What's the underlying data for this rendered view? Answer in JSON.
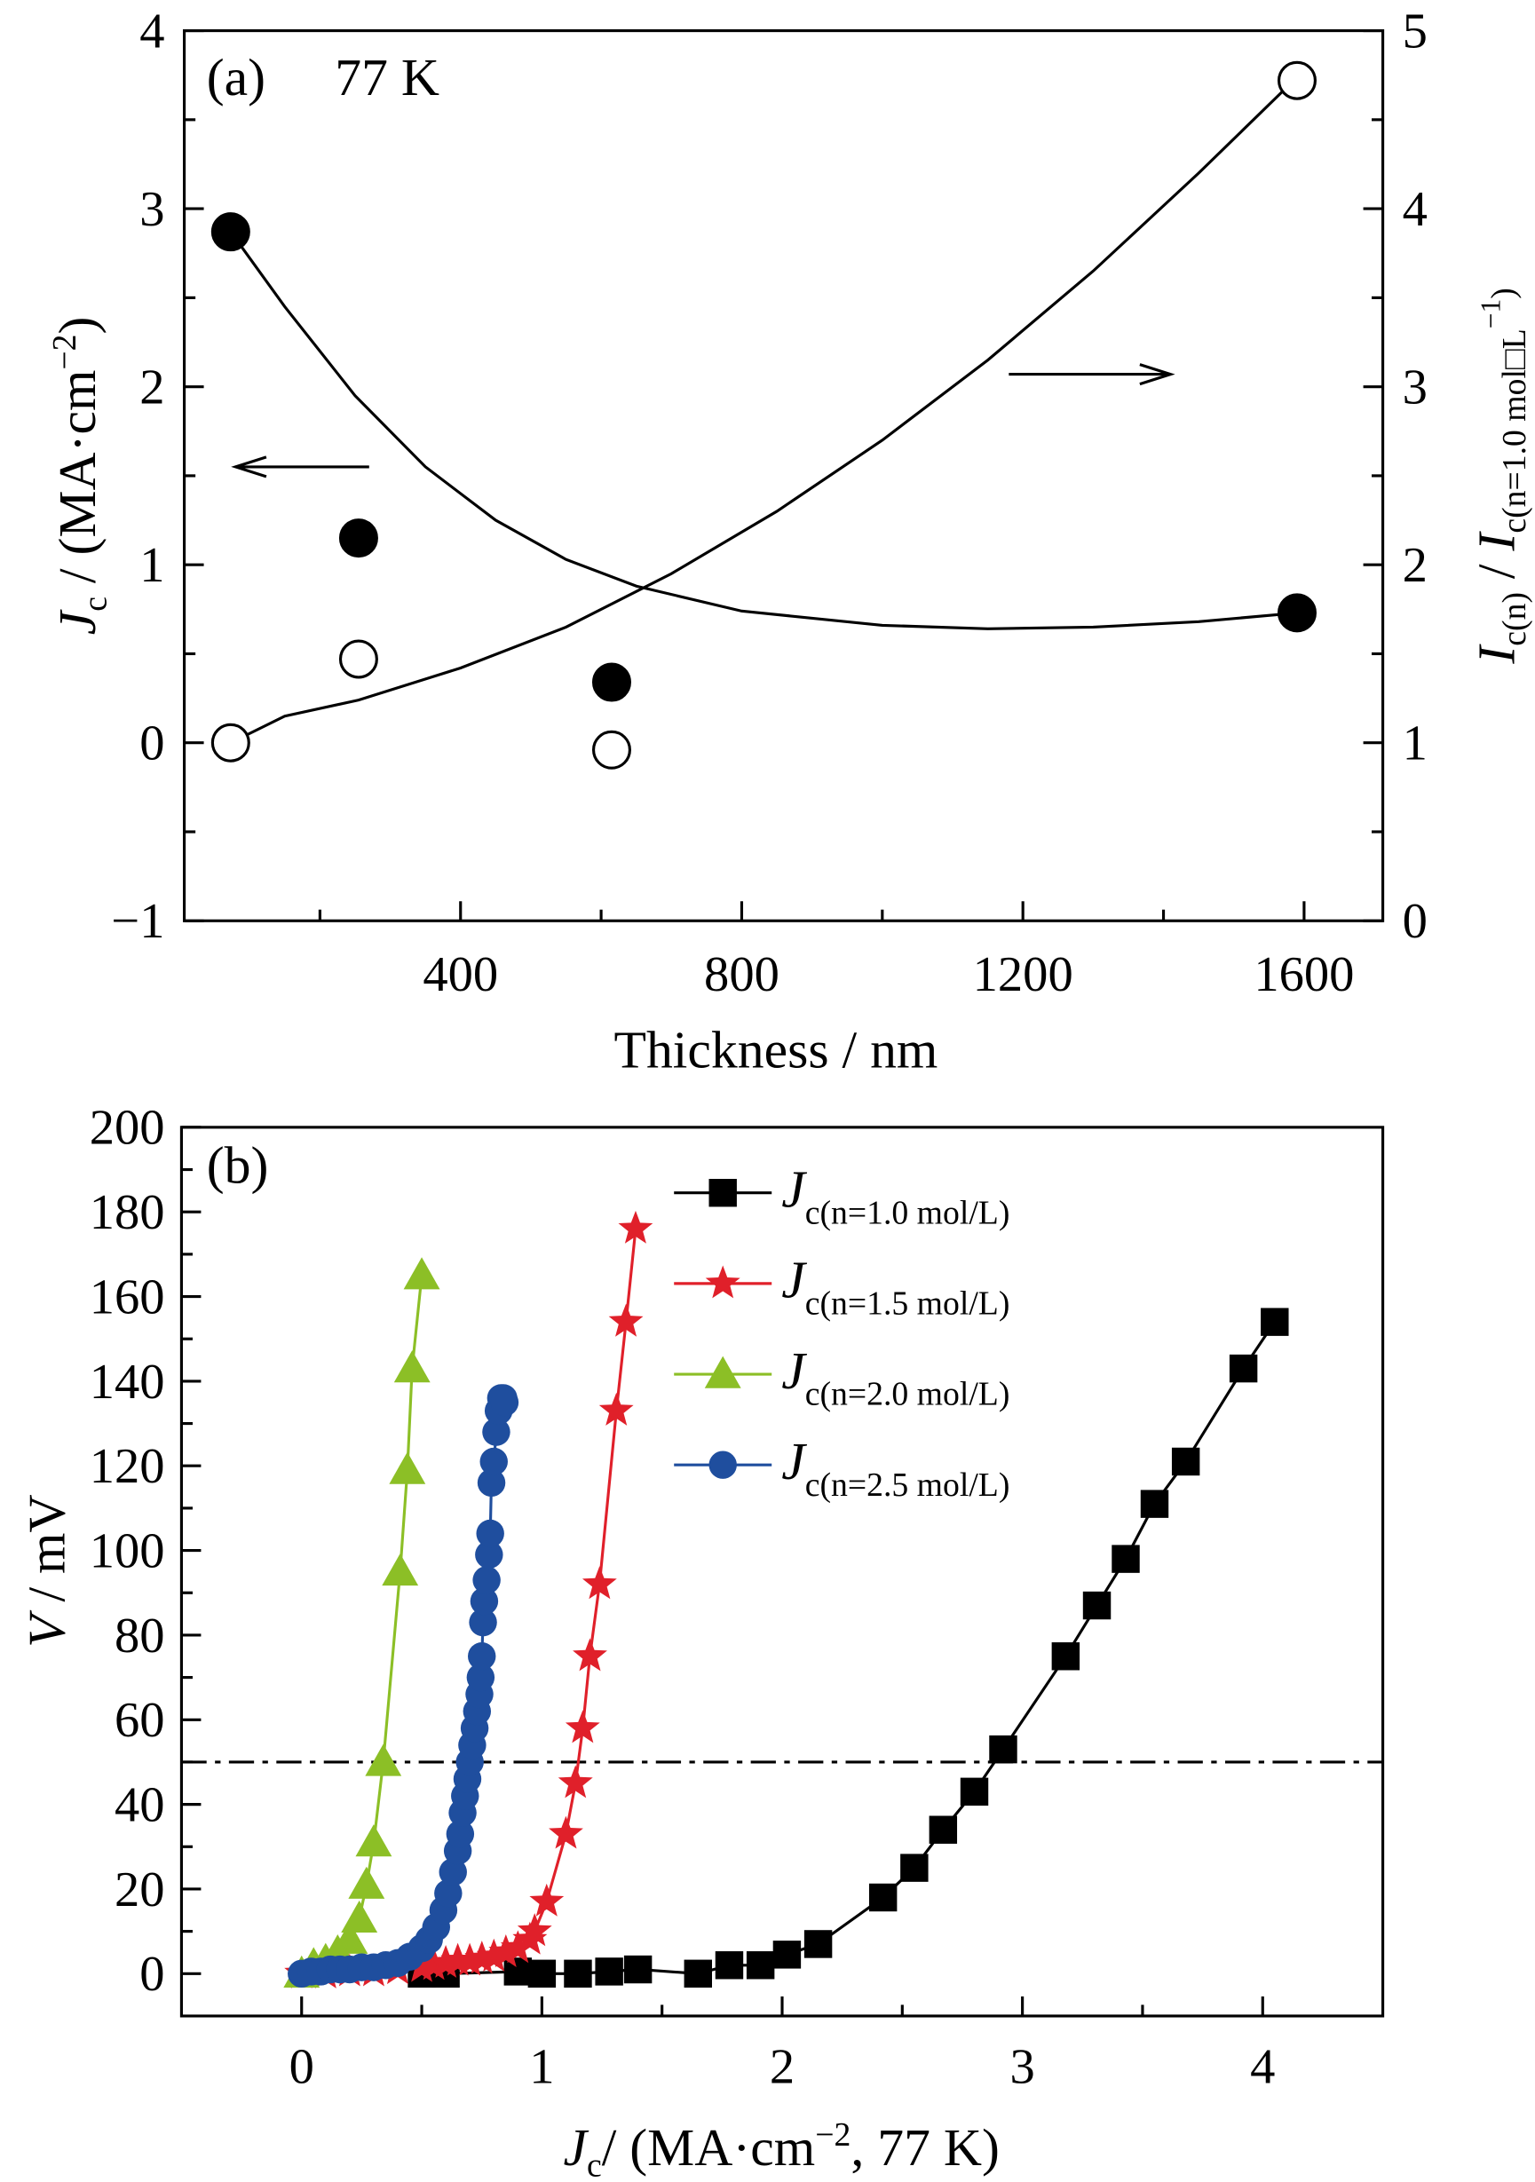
{
  "chart_data": [
    {
      "type": "scatter",
      "panel": "(a)",
      "annotation": "77 K",
      "xlabel": "Thickness / nm",
      "ylabel": {
        "main": "J",
        "sub": "c",
        "rest": " / (MA·cm",
        "sup": "−2",
        "close": ")"
      },
      "y2label": {
        "a": "I",
        "asub": "c(n)",
        "mid": " / ",
        "b": "I",
        "bsub": "c(n=1.0 mol□L",
        "bsup": "−1",
        "bclose": ")"
      },
      "xlim": [
        7,
        1712
      ],
      "ylim": [
        -1,
        4
      ],
      "y2lim": [
        0,
        5
      ],
      "xticks": [
        "400",
        "800",
        "1200",
        "1600"
      ],
      "yticks": [
        "−1",
        "0",
        "1",
        "2",
        "3",
        "4"
      ],
      "y2ticks": [
        "0",
        "1",
        "2",
        "3",
        "4",
        "5"
      ],
      "series": [
        {
          "name": "Jc",
          "axis": "left",
          "marker": "filled-circle",
          "x": [
            73,
            255,
            615,
            1590
          ],
          "y": [
            2.87,
            1.15,
            0.34,
            0.73
          ],
          "fit": {
            "x": [
              73,
              150,
              250,
              350,
              450,
              550,
              650,
              800,
              1000,
              1150,
              1300,
              1450,
              1590
            ],
            "y": [
              2.87,
              2.45,
              1.95,
              1.55,
              1.25,
              1.03,
              0.88,
              0.74,
              0.66,
              0.64,
              0.65,
              0.68,
              0.73
            ]
          }
        },
        {
          "name": "Ic ratio",
          "axis": "right",
          "marker": "open-circle",
          "x": [
            73,
            255,
            615,
            1590
          ],
          "y": [
            1.0,
            1.47,
            0.96,
            4.72
          ],
          "fit": {
            "x": [
              73,
              150,
              255,
              400,
              550,
              700,
              850,
              1000,
              1150,
              1300,
              1450,
              1580
            ],
            "y": [
              1.0,
              1.15,
              1.24,
              1.42,
              1.65,
              1.95,
              2.3,
              2.7,
              3.15,
              3.65,
              4.2,
              4.7
            ]
          }
        }
      ],
      "arrows": [
        {
          "direction": "left",
          "from": [
            270,
            1.55
          ],
          "to": [
            80,
            1.55
          ],
          "axis": "left"
        },
        {
          "direction": "right",
          "from": [
            1180,
            3.07
          ],
          "to": [
            1410,
            3.07
          ],
          "axis": "right"
        }
      ]
    },
    {
      "type": "line",
      "panel": "(b)",
      "xlabel": {
        "main": "J",
        "sub": "c",
        "rest": "/ (MA·cm",
        "sup": "−2",
        "close": ", 77 K)"
      },
      "ylabel": {
        "main": "V",
        "rest": " / mV"
      },
      "xlim": [
        -0.5,
        4.5
      ],
      "ylim": [
        -10,
        200
      ],
      "xticks": [
        "0",
        "1",
        "2",
        "3",
        "4"
      ],
      "yticks": [
        "0",
        "20",
        "40",
        "60",
        "80",
        "100",
        "120",
        "140",
        "160",
        "180",
        "200"
      ],
      "reference_line": {
        "y": 50,
        "style": "dash-dot"
      },
      "legend_position": "top-center",
      "series": [
        {
          "name": "J",
          "sub": "c(n=1.0 mol/L)",
          "color": "#000000",
          "marker": "square",
          "x": [
            0.5,
            0.6,
            0.9,
            1.0,
            1.15,
            1.28,
            1.4,
            1.65,
            1.78,
            1.91,
            2.02,
            2.15,
            2.42,
            2.55,
            2.67,
            2.8,
            2.92,
            3.18,
            3.31,
            3.43,
            3.55,
            3.68,
            3.92,
            4.05
          ],
          "y": [
            0,
            0,
            0.5,
            0,
            0,
            0.5,
            1,
            0,
            2,
            2,
            4.5,
            7,
            18,
            25,
            34,
            43,
            53,
            75,
            87,
            98,
            111,
            121,
            143,
            154
          ]
        },
        {
          "name": "J",
          "sub": "c(n=1.5 mol/L)",
          "color": "#e0202a",
          "marker": "star",
          "x": [
            0,
            0.1,
            0.2,
            0.3,
            0.4,
            0.5,
            0.55,
            0.6,
            0.65,
            0.7,
            0.75,
            0.8,
            0.85,
            0.9,
            0.95,
            0.97,
            1.02,
            1.1,
            1.14,
            1.17,
            1.2,
            1.24,
            1.31,
            1.35,
            1.39
          ],
          "y": [
            0,
            0,
            0.5,
            0.5,
            1,
            1.5,
            2,
            2.5,
            3,
            3,
            3.5,
            4,
            5,
            6,
            8,
            10,
            17,
            33,
            45,
            58,
            75,
            92,
            133,
            154,
            176
          ]
        },
        {
          "name": "J",
          "sub": "c(n=2.0 mol/L)",
          "color": "#8cbf26",
          "marker": "triangle",
          "x": [
            0,
            0.05,
            0.1,
            0.15,
            0.2,
            0.24,
            0.27,
            0.3,
            0.34,
            0.41,
            0.44,
            0.46,
            0.5
          ],
          "y": [
            0,
            2,
            3,
            5,
            8,
            13,
            21,
            31,
            50,
            95,
            119,
            143,
            165
          ]
        },
        {
          "name": "J",
          "sub": "c(n=2.5 mol/L)",
          "color": "#1f4e9e",
          "marker": "circle",
          "x": [
            0,
            0.04,
            0.08,
            0.12,
            0.16,
            0.2,
            0.25,
            0.3,
            0.35,
            0.4,
            0.45,
            0.5,
            0.53,
            0.56,
            0.59,
            0.61,
            0.63,
            0.65,
            0.66,
            0.67,
            0.68,
            0.69,
            0.7,
            0.71,
            0.72,
            0.73,
            0.74,
            0.745,
            0.75,
            0.755,
            0.76,
            0.77,
            0.78,
            0.785,
            0.79,
            0.8,
            0.81,
            0.82,
            0.83,
            0.84,
            0.845
          ],
          "y": [
            0,
            0.5,
            0.5,
            1,
            1,
            1,
            1.5,
            1.5,
            2,
            2.5,
            4,
            6,
            8,
            11,
            15,
            19,
            24,
            29,
            33,
            38,
            42,
            46,
            50,
            54,
            58,
            62,
            66,
            70,
            75,
            83,
            88,
            93,
            99,
            104,
            116,
            121,
            128,
            133,
            136,
            136,
            135
          ]
        }
      ]
    }
  ]
}
